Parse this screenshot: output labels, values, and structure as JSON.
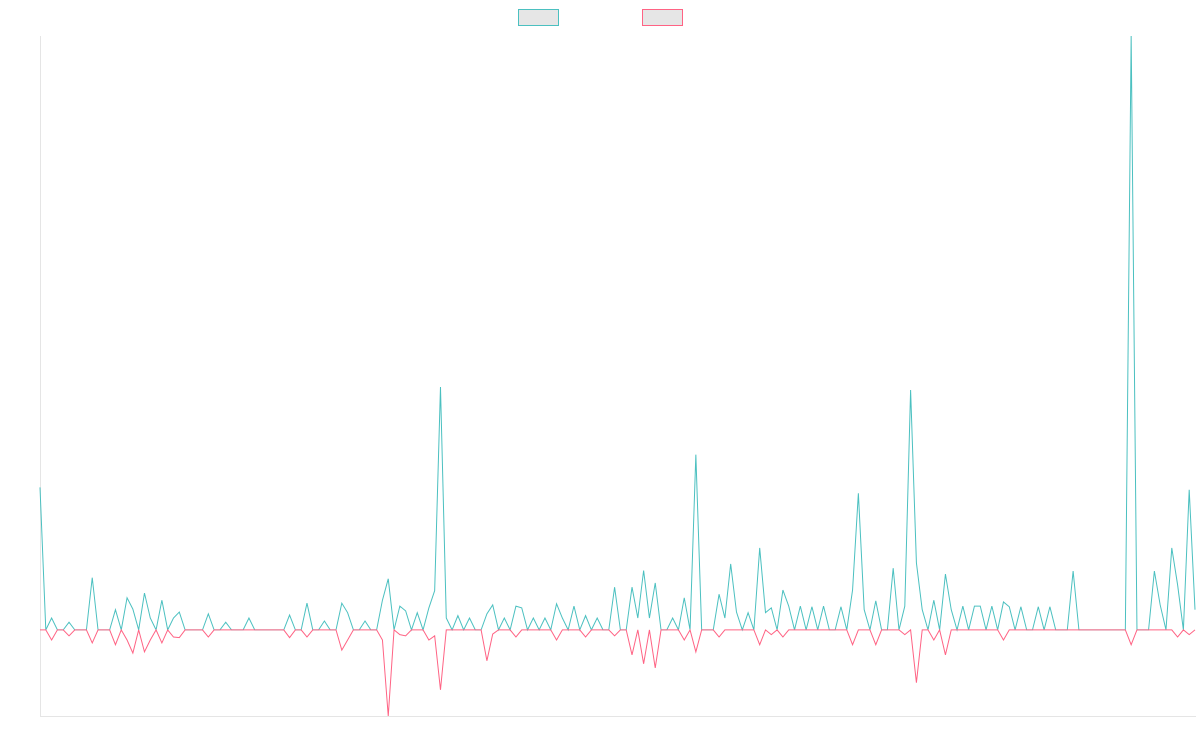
{
  "chart_data": {
    "type": "line",
    "legend": "top",
    "ylim": [
      -14.5,
      100
    ],
    "series": [
      {
        "color": "#4bc0c0",
        "values": [
          24,
          0,
          2,
          0,
          0,
          1.3,
          0,
          0,
          0,
          8.8,
          0,
          0,
          0,
          3.4,
          0,
          5.4,
          3.5,
          0,
          6.2,
          2,
          0,
          5,
          0,
          2,
          3,
          0,
          0,
          0,
          0,
          2.7,
          0,
          0,
          1.3,
          0,
          0,
          0,
          2,
          0,
          0,
          0,
          0,
          0,
          0,
          2.5,
          0,
          0,
          4.5,
          0,
          0,
          1.5,
          0,
          0,
          4.5,
          2.9,
          0,
          0,
          1.5,
          0,
          0,
          5,
          8.6,
          0,
          4,
          3.2,
          0,
          2.9,
          0,
          3.7,
          6.6,
          40.9,
          2,
          0,
          2.4,
          0,
          2,
          0,
          0,
          2.7,
          4.2,
          0,
          2,
          0,
          4,
          3.7,
          0,
          2,
          0,
          2,
          0,
          4.4,
          2,
          0,
          4,
          0,
          2.4,
          0,
          2,
          0,
          0,
          7.2,
          0,
          0,
          7.2,
          2,
          10,
          2,
          7.9,
          0,
          0,
          2,
          0,
          5.4,
          0,
          29.5,
          0,
          0,
          0,
          6,
          2,
          11.1,
          3,
          0,
          2.9,
          0,
          13.8,
          2.9,
          3.7,
          0,
          6.7,
          4,
          0,
          4,
          0,
          3.9,
          0,
          4,
          0,
          0,
          3.9,
          0,
          6.7,
          23,
          3.4,
          0,
          4.9,
          0,
          0,
          10.4,
          0,
          4,
          40.4,
          11.3,
          3.4,
          0,
          5,
          0,
          9.4,
          3.4,
          0,
          4,
          0,
          4,
          4,
          0,
          4,
          0,
          4.7,
          3.9,
          0,
          3.9,
          0,
          0,
          3.9,
          0,
          3.9,
          0,
          0,
          0,
          9.9,
          0,
          0,
          0,
          0,
          0,
          0,
          0,
          0,
          0,
          100,
          0,
          0,
          0,
          9.9,
          4.2,
          0,
          13.8,
          7.6,
          0,
          23.6,
          3.4
        ]
      },
      {
        "color": "#ff6384",
        "values": [
          0,
          0,
          -1.7,
          0,
          0,
          -1,
          0,
          0,
          0,
          -2.2,
          0,
          0,
          0,
          -2.5,
          0,
          -1.7,
          -3.9,
          0,
          -3.7,
          -1.7,
          0,
          -2.2,
          0,
          -1.2,
          -1.3,
          0,
          0,
          0,
          0,
          -1.2,
          0,
          0,
          0,
          0,
          0,
          0,
          0,
          0,
          0,
          0,
          0,
          0,
          0,
          -1.3,
          0,
          0,
          -1.2,
          0,
          0,
          0,
          0,
          0,
          -3.4,
          -1.7,
          0,
          0,
          0,
          0,
          0,
          -1.7,
          -14.5,
          0,
          -0.8,
          -1,
          0,
          0,
          0,
          -1.7,
          -1,
          -10.1,
          0,
          0,
          0,
          0,
          0,
          0,
          0,
          -5.2,
          -0.7,
          0,
          0,
          0,
          -1.2,
          0,
          0,
          0,
          0,
          0,
          0,
          -1.7,
          0,
          0,
          0,
          0,
          -1.2,
          0,
          0,
          0,
          0,
          -1,
          0,
          0,
          -4.2,
          0,
          -5.7,
          0,
          -6.4,
          0,
          0,
          0,
          0,
          -1.7,
          0,
          -3.7,
          0,
          0,
          0,
          -1.2,
          0,
          0,
          0,
          0,
          0,
          0,
          -2.5,
          0,
          -0.8,
          0,
          -1.2,
          0,
          0,
          0,
          0,
          0,
          0,
          0,
          0,
          0,
          0,
          0,
          -2.5,
          0,
          0,
          0,
          -2.5,
          0,
          0,
          0,
          0,
          -0.8,
          0,
          -8.9,
          0,
          0,
          -1.7,
          0,
          -4.2,
          0,
          0,
          0,
          0,
          0,
          0,
          0,
          0,
          0,
          -1.7,
          0,
          0,
          0,
          0,
          0,
          0,
          0,
          0,
          0,
          0,
          0,
          0,
          0,
          0,
          0,
          0,
          0,
          0,
          0,
          0,
          0,
          -2.5,
          0,
          0,
          0,
          0,
          0,
          0,
          0,
          -1.2,
          0,
          -0.8,
          0
        ]
      }
    ]
  }
}
